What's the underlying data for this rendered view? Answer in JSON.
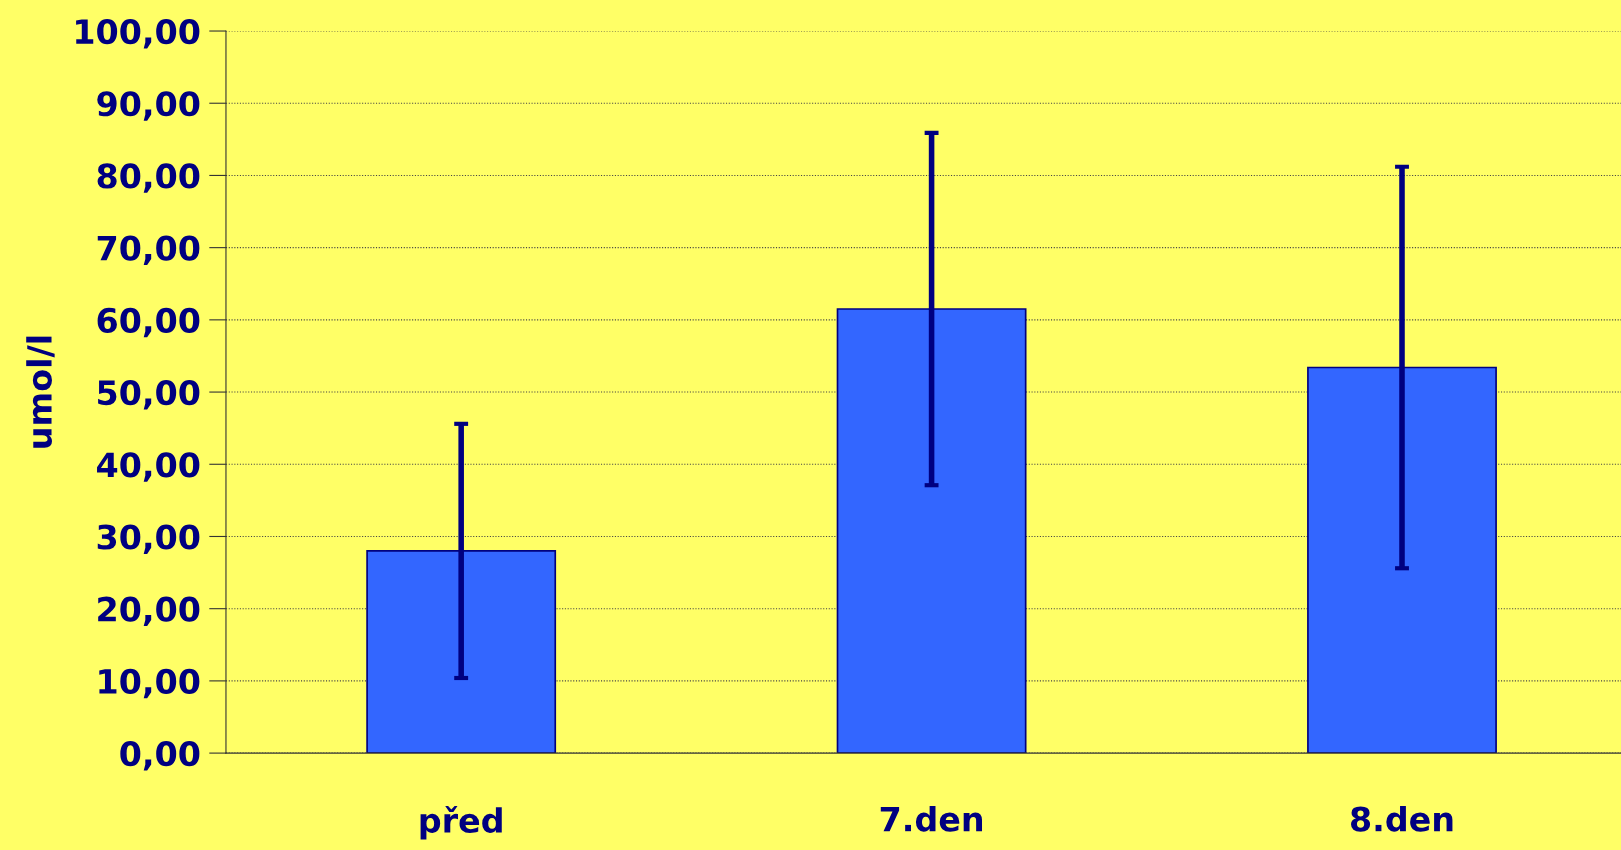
{
  "chart_data": {
    "type": "bar",
    "ylabel": "umol/l",
    "categories": [
      "před",
      "7.den",
      "8.den"
    ],
    "values": [
      28.0,
      61.5,
      53.4
    ],
    "errors": [
      17.6,
      24.4,
      27.8
    ],
    "color": "#3366ff",
    "ylim": [
      0,
      100
    ],
    "yticks": [
      {
        "value": 0,
        "label": "0,00"
      },
      {
        "value": 10,
        "label": "10,00"
      },
      {
        "value": 20,
        "label": "20,00"
      },
      {
        "value": 30,
        "label": "30,00"
      },
      {
        "value": 40,
        "label": "40,00"
      },
      {
        "value": 50,
        "label": "50,00"
      },
      {
        "value": 60,
        "label": "60,00"
      },
      {
        "value": 70,
        "label": "70,00"
      },
      {
        "value": 80,
        "label": "80,00"
      },
      {
        "value": 90,
        "label": "90,00"
      },
      {
        "value": 100,
        "label": "100,00"
      }
    ],
    "grid": "y"
  }
}
